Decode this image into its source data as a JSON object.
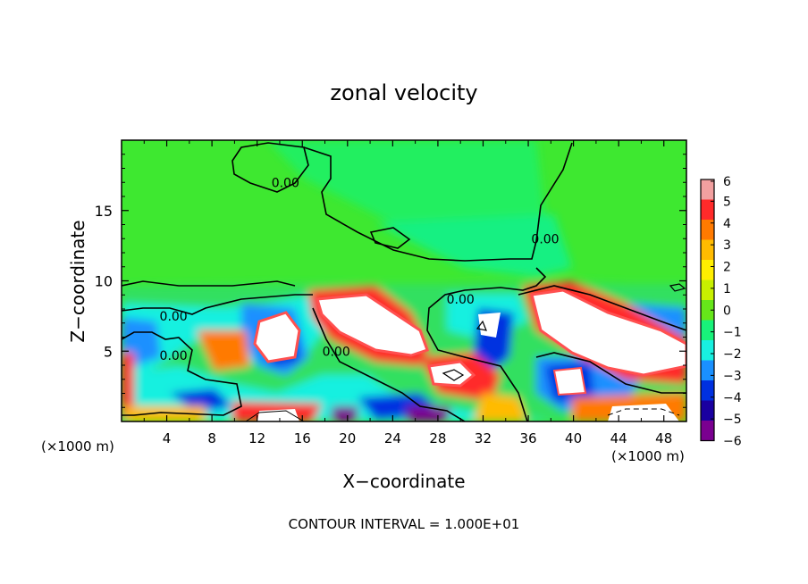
{
  "chart_data": {
    "type": "heatmap",
    "title": "zonal velocity",
    "xlabel": "X−coordinate",
    "ylabel": "Z−coordinate",
    "x_unit_left": "(×1000 m)",
    "x_unit_right": "(×1000 m)",
    "footer": "CONTOUR INTERVAL = 1.000E+01",
    "xlim": [
      0,
      50
    ],
    "ylim": [
      0,
      20
    ],
    "x_ticks": [
      "4",
      "8",
      "12",
      "16",
      "20",
      "24",
      "28",
      "32",
      "36",
      "40",
      "44",
      "48"
    ],
    "x_tick_values": [
      4,
      8,
      12,
      16,
      20,
      24,
      28,
      32,
      36,
      40,
      44,
      48
    ],
    "y_ticks": [
      "5",
      "10",
      "15"
    ],
    "y_tick_values": [
      5,
      10,
      15
    ],
    "colorbar": {
      "range": [
        -6,
        6
      ],
      "labels": [
        "6",
        "5",
        "4",
        "3",
        "2",
        "1",
        "0",
        "−1",
        "−2",
        "−3",
        "−4",
        "−5",
        "−6"
      ],
      "values": [
        6,
        5,
        4,
        3,
        2,
        1,
        0,
        -1,
        -2,
        -3,
        -4,
        -5,
        -6
      ],
      "colors": [
        "#f2a0a0",
        "#ff2a2a",
        "#ff7a00",
        "#ffbb00",
        "#ffee00",
        "#c8f000",
        "#66e61a",
        "#18f27a",
        "#18f0e0",
        "#1a90ff",
        "#0030e0",
        "#1a00a0",
        "#7a0090"
      ]
    },
    "contour_labels": [
      {
        "text": "0.00",
        "x": 14.5,
        "z": 17.0
      },
      {
        "text": "0.00",
        "x": 37.5,
        "z": 13.0
      },
      {
        "text": "0.00",
        "x": 30.0,
        "z": 8.7
      },
      {
        "text": "0.00",
        "x": 4.6,
        "z": 7.5
      },
      {
        "text": "0.00",
        "x": 4.6,
        "z": 4.7
      },
      {
        "text": "0.00",
        "x": 19.0,
        "z": 5.0
      }
    ],
    "regions": [
      {
        "x": [
          17,
          36
        ],
        "z": [
          5,
          10
        ],
        "value": 6
      },
      {
        "x": [
          36,
          50
        ],
        "z": [
          4,
          10
        ],
        "value": 6
      },
      {
        "x": [
          12,
          17
        ],
        "z": [
          4,
          8
        ],
        "value": 6
      },
      {
        "x": [
          26,
          31
        ],
        "z": [
          2,
          5
        ],
        "value": 5
      },
      {
        "x": [
          6,
          11
        ],
        "z": [
          3.5,
          6.5
        ],
        "value": 5
      },
      {
        "x": [
          38,
          50
        ],
        "z": [
          0,
          2.5
        ],
        "value": 6
      },
      {
        "x": [
          10,
          16
        ],
        "z": [
          0,
          3
        ],
        "value": 4
      },
      {
        "x": [
          30,
          35
        ],
        "z": [
          1,
          8
        ],
        "value": -4
      },
      {
        "x": [
          10,
          20
        ],
        "z": [
          3,
          8
        ],
        "value": -4
      },
      {
        "x": [
          36,
          44
        ],
        "z": [
          1.5,
          6
        ],
        "value": -5
      },
      {
        "x": [
          0,
          4
        ],
        "z": [
          4,
          8
        ],
        "value": -4
      },
      {
        "x": [
          20,
          30
        ],
        "z": [
          0,
          2
        ],
        "value": -5
      }
    ],
    "grid": false,
    "legend": "colorbar-right"
  }
}
